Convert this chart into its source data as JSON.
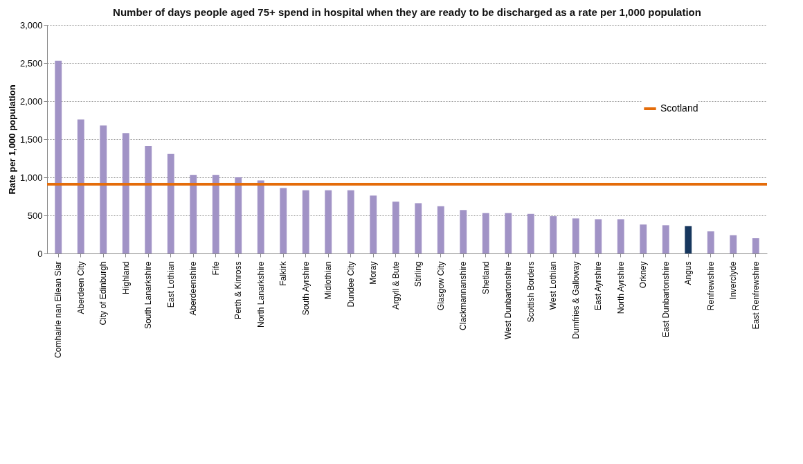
{
  "chart_data": {
    "type": "bar",
    "title": "Number of days people aged 75+ spend in hospital when they are ready to be discharged as a rate per 1,000 population",
    "ylabel": "Rate per 1,000 population",
    "categories": [
      "Comhairle nan Eilean Siar",
      "Aberdeen City",
      "City of Edinburgh",
      "Highland",
      "South Lanarkshire",
      "East Lothian",
      "Aberdeenshire",
      "Fife",
      "Perth & Kinross",
      "North Lanarkshire",
      "Falkirk",
      "South Ayrshire",
      "Midlothian",
      "Dundee City",
      "Moray",
      "Argyll & Bute",
      "Stirling",
      "Glasgow City",
      "Clackmannanshire",
      "Shetland",
      "West Dunbartonshire",
      "Scottish Borders",
      "West Lothian",
      "Dumfries & Galloway",
      "East Ayrshire",
      "North Ayrshire",
      "Orkney",
      "East Dunbartonshire",
      "Angus",
      "Renfrewshire",
      "Inverclyde",
      "East Renfrewshire"
    ],
    "values": [
      2530,
      1760,
      1680,
      1580,
      1410,
      1310,
      1030,
      1030,
      1000,
      960,
      860,
      830,
      830,
      830,
      760,
      680,
      660,
      620,
      570,
      530,
      530,
      520,
      490,
      460,
      450,
      450,
      380,
      370,
      360,
      290,
      240,
      200
    ],
    "colors": [
      "#a193c6",
      "#a193c6",
      "#a193c6",
      "#a193c6",
      "#a193c6",
      "#a193c6",
      "#a193c6",
      "#a193c6",
      "#a193c6",
      "#a193c6",
      "#a193c6",
      "#a193c6",
      "#a193c6",
      "#a193c6",
      "#a193c6",
      "#a193c6",
      "#a193c6",
      "#a193c6",
      "#a193c6",
      "#a193c6",
      "#a193c6",
      "#a193c6",
      "#a193c6",
      "#a193c6",
      "#a193c6",
      "#a193c6",
      "#a193c6",
      "#a193c6",
      "#17375e",
      "#a193c6",
      "#a193c6",
      "#a193c6"
    ],
    "ylim": [
      0,
      3000
    ],
    "yticks": [
      0,
      500,
      {
        "value": 1000,
        "label": "1,000"
      },
      {
        "value": 1500,
        "label": "1,500"
      },
      {
        "value": 2000,
        "label": "2,000"
      },
      {
        "value": 2500,
        "label": "2,500"
      },
      {
        "value": 3000,
        "label": "3,000"
      }
    ],
    "ref_lines": [
      {
        "axis": "y",
        "value": 910,
        "label": "Scotland",
        "color": "#e46c0a"
      }
    ],
    "grid": "y",
    "legend": "right"
  }
}
